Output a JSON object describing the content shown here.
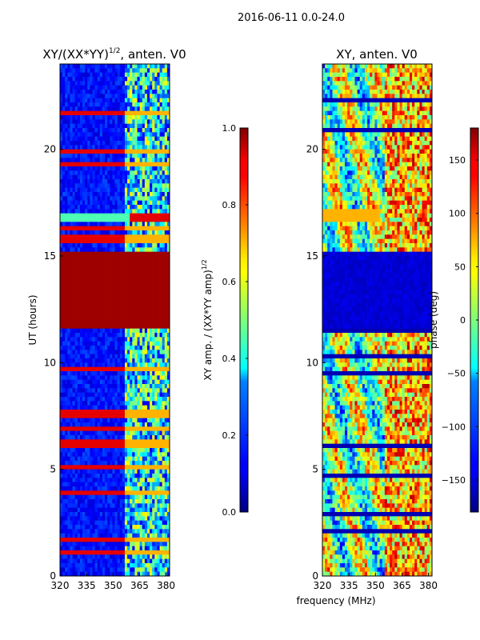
{
  "figure": {
    "suptitle": "2016-06-11 0.0-24.0",
    "xlabel_shared": "frequency (MHz)"
  },
  "chart_data": [
    {
      "type": "heatmap",
      "title": "XY/(XX*YY)$^{1/2}$, anten. V0",
      "title_main": "XY/(XX*YY)",
      "title_sup": "1/2",
      "title_tail": ", anten. V0",
      "xlabel": "",
      "ylabel": "UT (hours)",
      "x_ticks": [
        "320",
        "335",
        "350",
        "365",
        "380"
      ],
      "x_tick_values": [
        320,
        335,
        350,
        365,
        380
      ],
      "y_ticks": [
        "0",
        "5",
        "10",
        "15",
        "20"
      ],
      "y_tick_values": [
        0,
        5,
        10,
        15,
        20
      ],
      "xlim": [
        320,
        382
      ],
      "ylim": [
        0,
        24
      ],
      "colormap": "jet",
      "colorbar": {
        "label": "XY amp. / (XX*YY amp)$^{1/2}$",
        "label_main": "XY amp. / (XX*YY amp)",
        "label_sup": "1/2",
        "ticks": [
          "0.0",
          "0.2",
          "0.4",
          "0.6",
          "0.8",
          "1.0"
        ],
        "tick_values": [
          0.0,
          0.2,
          0.4,
          0.6,
          0.8,
          1.0
        ],
        "range": [
          0,
          1
        ]
      },
      "features": [
        {
          "ut_range": [
            11.5,
            15.3
          ],
          "freq_range": [
            320,
            382
          ],
          "value": 1.0,
          "note": "saturated block"
        },
        {
          "ut_range": [
            16.7,
            17.0
          ],
          "freq_range": [
            360,
            382
          ],
          "value": 0.9,
          "note": "bright dashes"
        }
      ]
    },
    {
      "type": "heatmap",
      "title": "XY, anten. V0",
      "xlabel": "frequency (MHz)",
      "ylabel": "",
      "x_ticks": [
        "320",
        "335",
        "350",
        "365",
        "380"
      ],
      "x_tick_values": [
        320,
        335,
        350,
        365,
        380
      ],
      "y_ticks": [
        "0",
        "5",
        "10",
        "15",
        "20"
      ],
      "y_tick_values": [
        0,
        5,
        10,
        15,
        20
      ],
      "xlim": [
        320,
        382
      ],
      "ylim": [
        0,
        24
      ],
      "colormap": "jet",
      "colorbar": {
        "label": "phase (deg)",
        "ticks": [
          "−150",
          "−100",
          "−50",
          "0",
          "50",
          "100",
          "150"
        ],
        "tick_values": [
          -150,
          -100,
          -50,
          0,
          50,
          100,
          150
        ],
        "range": [
          -180,
          180
        ]
      },
      "features": [
        {
          "ut_range": [
            11.5,
            15.3
          ],
          "freq_range": [
            320,
            382
          ],
          "value": -180,
          "note": "dark blue block"
        },
        {
          "ut_range": [
            16.5,
            17.2
          ],
          "freq_range": [
            320,
            350
          ],
          "value": 60,
          "note": "orange band"
        }
      ]
    }
  ]
}
